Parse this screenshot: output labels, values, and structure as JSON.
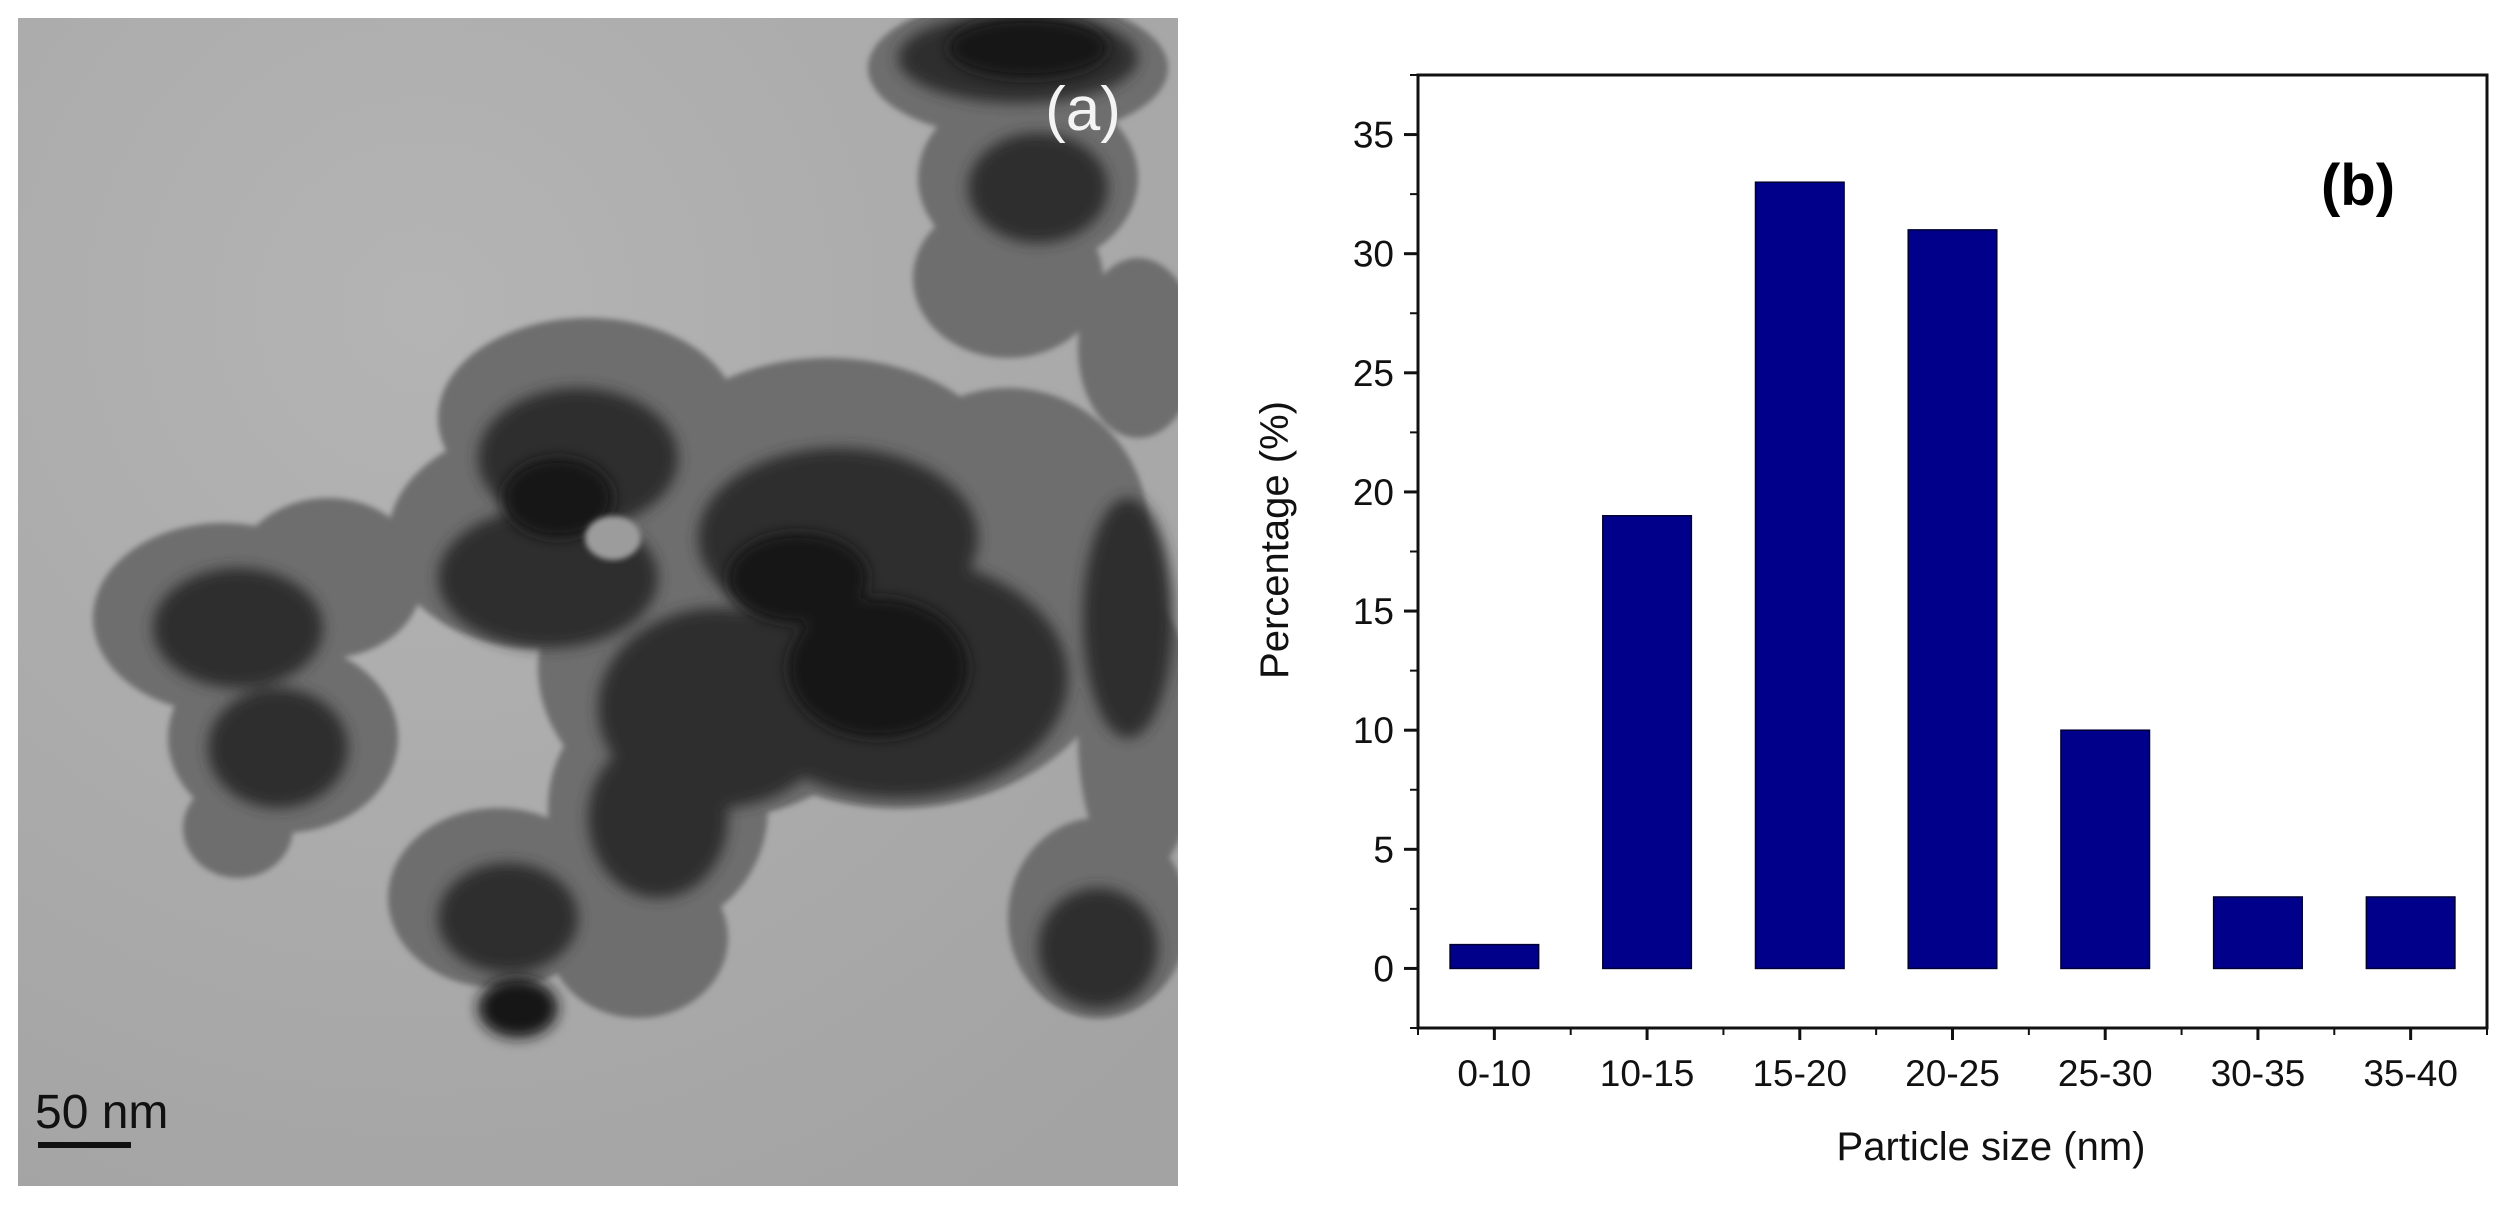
{
  "panel_a": {
    "label": "(a)",
    "scale_bar_label": "50 nm"
  },
  "colors": {
    "bar_fill": "#00008b",
    "tem_background": "#a9a9a9",
    "particles_dark": "#1e1e1e"
  },
  "chart_data": {
    "type": "bar",
    "panel_label": "(b)",
    "categories": [
      "0-10",
      "10-15",
      "15-20",
      "20-25",
      "25-30",
      "30-35",
      "35-40"
    ],
    "values": [
      1,
      19,
      33,
      31,
      10,
      3,
      3
    ],
    "xlabel": "Particle size (nm)",
    "ylabel": "Percentage (%)",
    "ylim": [
      -2.5,
      37.5
    ],
    "yticks": [
      0,
      5,
      10,
      15,
      20,
      25,
      30,
      35
    ],
    "grid": false,
    "legend": "none"
  }
}
